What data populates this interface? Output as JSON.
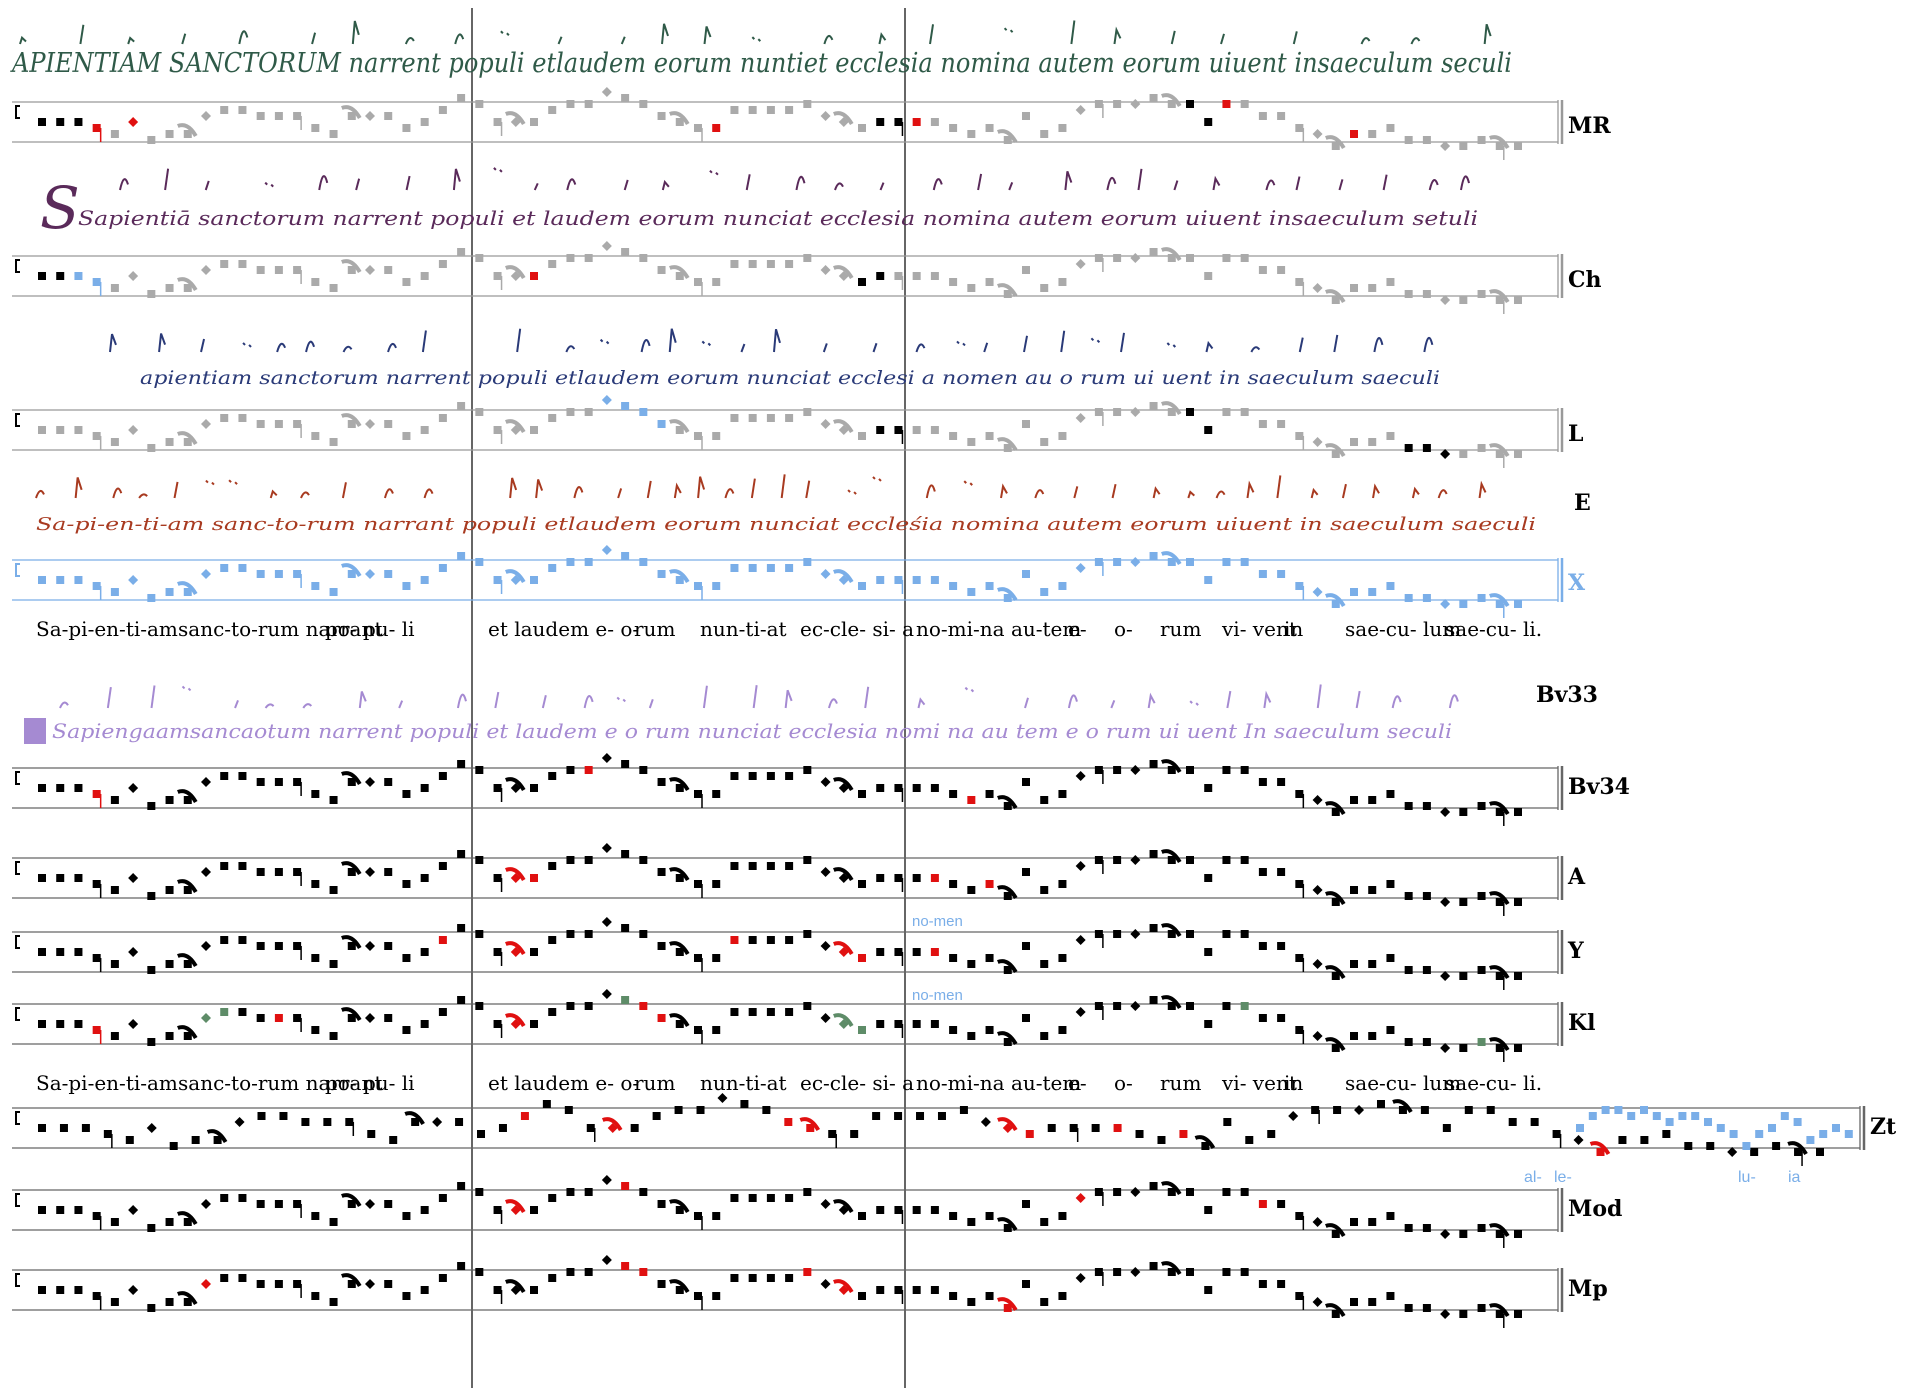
{
  "colors": {
    "staff": "#666666",
    "black": "#000000",
    "red": "#e01010",
    "gray": "#aaaaaa",
    "blue": "#7aaee8",
    "green": "#5e8c68",
    "mr_ink": "#2f5a48",
    "ch_ink": "#5a2a5a",
    "l_ink": "#2a3a78",
    "e_ink": "#a83a20",
    "bv33_ink": "#a58ad2"
  },
  "top_section": {
    "staves": [
      {
        "id": "MR",
        "label": "MR",
        "line_color": "#999999",
        "note_palette": [
          "black",
          "red",
          "gray"
        ],
        "manuscript": {
          "text": "APIENTIAM SANCTORUM narrent populi etlaudem eorum nuntiet ecclesia nomina autem eorum uiuent insaeculum seculi",
          "ink": "#2f5a48"
        }
      },
      {
        "id": "Ch",
        "label": "Ch",
        "line_color": "#999999",
        "note_palette": [
          "black",
          "blue",
          "red",
          "gray"
        ],
        "manuscript": {
          "text": "Sapientiā sanctorum narrent populi et laudem eorum nunciat ecclesia   nomina autem eorum   uiuent  insaeculum setuli",
          "ink": "#5a2a5a"
        }
      },
      {
        "id": "L",
        "label": "L",
        "line_color": "#999999",
        "note_palette": [
          "gray",
          "blue",
          "black"
        ],
        "manuscript": {
          "text": "apientiam sanctorum narrent populi etlaudem   eorum nunciat ecclesi a   nomen au  o rum   ui uent in saeculum saeculi",
          "ink": "#2a3a78"
        }
      },
      {
        "id": "X",
        "label": "X",
        "line_color": "#7aaee8",
        "note_palette": [
          "blue"
        ],
        "manuscript": {
          "text": "Sa-pi-en-ti-am sanc-to-rum narrant   populi etlaudem  eorum   nunciat eccleśia   nomina autem eorum   uiuent in   saeculum saeculi",
          "ink": "#a83a20",
          "label": "E"
        }
      }
    ],
    "lyrics": [
      "Sa-pi-en-ti-am",
      "sanc-to-rum narrant",
      "po- pu- li",
      "et laudem e- o-",
      "rum",
      "nun-ti-at",
      "ec-cle- si- a",
      "no-mi-na au-tem",
      "e-",
      "o-",
      "rum",
      "vi- vent",
      "in",
      "sae-cu- lum",
      "sae-cu- li."
    ]
  },
  "bottom_section": {
    "bv33": {
      "label": "Bv33",
      "text": "Sapiengaamsancaotum narrent  populi et laudem e o  rum nunciat ecclesia nomi  na au tem e o  rum ui uent  In  saeculum seculi",
      "ink": "#a58ad2"
    },
    "staves": [
      {
        "id": "Bv34",
        "label": "Bv34"
      },
      {
        "id": "A",
        "label": "A"
      },
      {
        "id": "Y",
        "label": "Y",
        "gloss": "no-men"
      },
      {
        "id": "Kl",
        "label": "Kl",
        "gloss": "no-men"
      },
      {
        "id": "Zt",
        "label": "Zt",
        "alleluia": [
          "al-",
          "le-",
          "lu-",
          "ia"
        ]
      },
      {
        "id": "Mod",
        "label": "Mod"
      },
      {
        "id": "Mp",
        "label": "Mp"
      }
    ],
    "lyrics": [
      "Sa-pi-en-ti-am",
      "sanc-to-rum narrant",
      "po- pu- li",
      "et laudem e- o-",
      "rum",
      "nun-ti-at",
      "ec-cle- si- a",
      "no-mi-na au-tem",
      "e-",
      "o-",
      "rum",
      "vi- vent",
      "in",
      "sae-cu- lum",
      "sae-cu- li."
    ]
  }
}
